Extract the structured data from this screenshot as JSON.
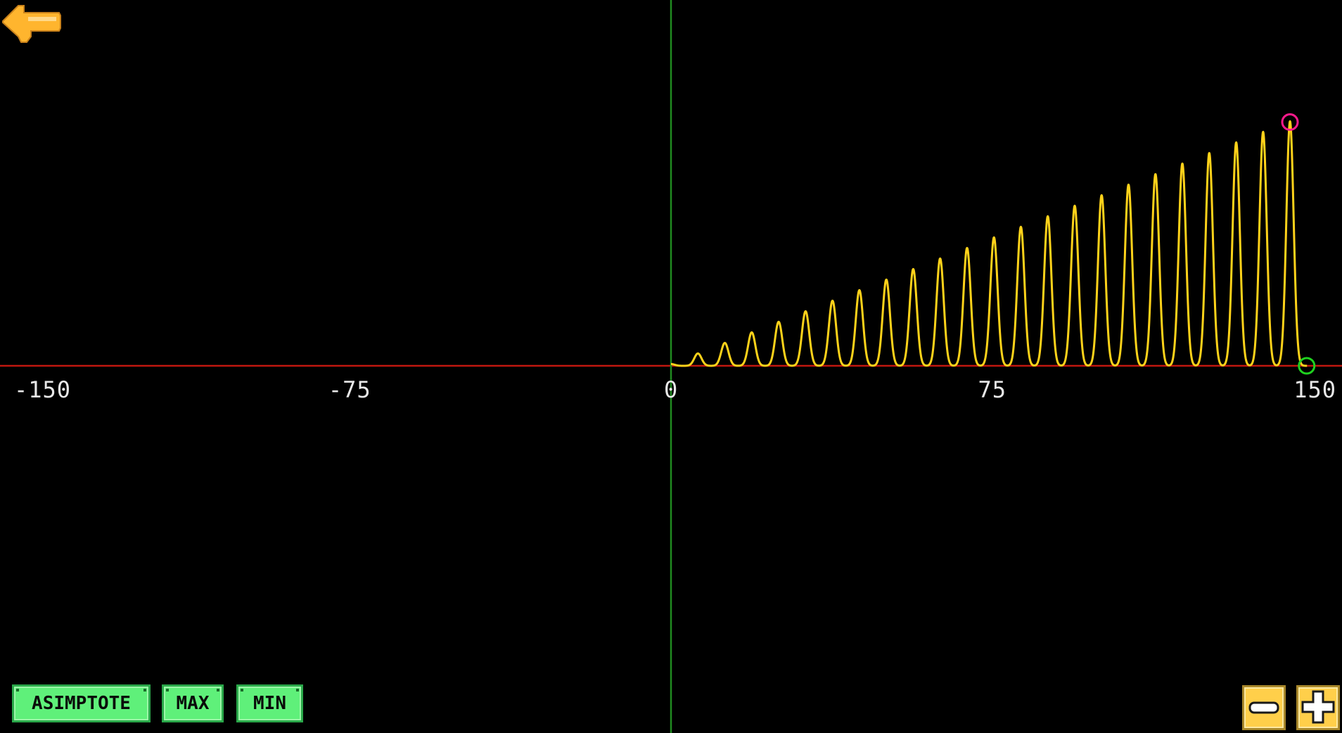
{
  "toolbar": {
    "asimptote_label": "ASIMPTOTE",
    "max_label": "MAX",
    "min_label": "MIN"
  },
  "icons": {
    "back": "arrow-left-icon",
    "zoom_out": "minus-icon",
    "zoom_in": "plus-icon"
  },
  "colors": {
    "background": "#000000",
    "x_axis": "#c0170f",
    "y_axis": "#1f8a1f",
    "curve": "#ffd21a",
    "max_marker": "#ff1a8c",
    "min_marker": "#1fd21f",
    "button_fill": "#5ff07a",
    "zoom_fill": "#ffcf4a",
    "back_arrow": "#ffb52e"
  },
  "chart_data": {
    "type": "line",
    "xlim": [
      -150,
      150
    ],
    "x_ticks": [
      "-150",
      "-75",
      "0",
      "75",
      "150"
    ],
    "x_tick_values": [
      -150,
      -75,
      0,
      75,
      150
    ],
    "grid": false,
    "ylim": [
      -72,
      72
    ],
    "peaks": {
      "x": [
        0,
        6.28,
        12.57,
        18.85,
        25.13,
        31.42,
        37.7,
        43.98,
        50.27,
        56.55,
        62.83,
        69.12,
        75.4,
        81.68,
        87.96,
        94.25,
        100.53,
        106.81,
        113.1,
        119.38,
        125.66,
        131.95,
        138.23,
        144.51
      ],
      "y": [
        0.5,
        3.5,
        6.5,
        9.5,
        12.5,
        15.5,
        18.5,
        21.5,
        24.5,
        27.5,
        30.5,
        33.5,
        36.5,
        39.5,
        42.5,
        45.5,
        48.5,
        51.5,
        54.5,
        57.5,
        60.5,
        63.5,
        66.5,
        69.5
      ]
    },
    "peak_width": 1.2,
    "curve_start_x": 0,
    "curve_end_x": 148.5,
    "markers": {
      "max": {
        "x": 144.5,
        "y": 69.3
      },
      "min": {
        "x": 148.4,
        "y": 0
      }
    }
  }
}
